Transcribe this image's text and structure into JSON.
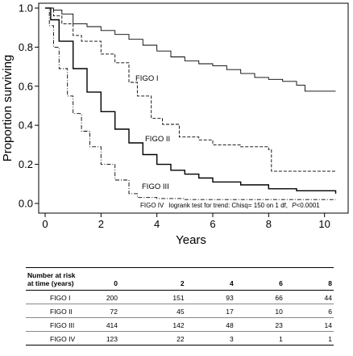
{
  "chart_data": {
    "type": "line",
    "ylabel": "Proportion surviving",
    "xlabel": "Years",
    "xlim": [
      0,
      10.5
    ],
    "ylim": [
      0,
      1.0
    ],
    "xticks": [
      "0",
      "2",
      "4",
      "6",
      "8",
      "10"
    ],
    "yticks": [
      "0.0",
      "0.2",
      "0.4",
      "0.6",
      "0.8",
      "1.0"
    ],
    "annotation": {
      "label": "FIGO IV",
      "text": "logrank test for trend: Chisq= 150 on 1 df,",
      "p_label": "P",
      "p_value": "<0.0001"
    },
    "series": [
      {
        "name": "FIGO I",
        "style": "solid",
        "points": [
          [
            0,
            1.0
          ],
          [
            0.3,
            0.99
          ],
          [
            0.6,
            0.97
          ],
          [
            1.0,
            0.92
          ],
          [
            1.5,
            0.905
          ],
          [
            2.0,
            0.885
          ],
          [
            2.5,
            0.865
          ],
          [
            3.0,
            0.84
          ],
          [
            3.5,
            0.81
          ],
          [
            4.0,
            0.78
          ],
          [
            4.5,
            0.75
          ],
          [
            5.0,
            0.73
          ],
          [
            5.5,
            0.715
          ],
          [
            6.0,
            0.705
          ],
          [
            6.5,
            0.685
          ],
          [
            7.0,
            0.665
          ],
          [
            7.5,
            0.645
          ],
          [
            8.0,
            0.635
          ],
          [
            8.5,
            0.625
          ],
          [
            9.0,
            0.605
          ],
          [
            9.3,
            0.575
          ],
          [
            10.4,
            0.575
          ]
        ]
      },
      {
        "name": "FIGO II",
        "style": "dashed",
        "points": [
          [
            0,
            1.0
          ],
          [
            0.3,
            0.96
          ],
          [
            0.6,
            0.92
          ],
          [
            1.0,
            0.86
          ],
          [
            1.3,
            0.83
          ],
          [
            2.0,
            0.765
          ],
          [
            2.5,
            0.72
          ],
          [
            3.0,
            0.62
          ],
          [
            3.3,
            0.55
          ],
          [
            3.8,
            0.435
          ],
          [
            4.2,
            0.405
          ],
          [
            4.8,
            0.34
          ],
          [
            5.5,
            0.325
          ],
          [
            6.0,
            0.3
          ],
          [
            7.0,
            0.29
          ],
          [
            8.0,
            0.275
          ],
          [
            8.1,
            0.165
          ],
          [
            10.4,
            0.165
          ]
        ]
      },
      {
        "name": "FIGO III",
        "style": "solid",
        "points": [
          [
            0,
            1.0
          ],
          [
            0.2,
            0.94
          ],
          [
            0.5,
            0.83
          ],
          [
            1.0,
            0.69
          ],
          [
            1.5,
            0.57
          ],
          [
            2.0,
            0.47
          ],
          [
            2.5,
            0.38
          ],
          [
            3.0,
            0.31
          ],
          [
            3.5,
            0.25
          ],
          [
            4.0,
            0.2
          ],
          [
            4.5,
            0.17
          ],
          [
            5.0,
            0.15
          ],
          [
            5.5,
            0.13
          ],
          [
            6.0,
            0.11
          ],
          [
            7.0,
            0.095
          ],
          [
            8.0,
            0.075
          ],
          [
            9.0,
            0.065
          ],
          [
            10.4,
            0.05
          ]
        ]
      },
      {
        "name": "FIGO IV",
        "style": "dash-dot",
        "points": [
          [
            0,
            1.0
          ],
          [
            0.15,
            0.91
          ],
          [
            0.3,
            0.8
          ],
          [
            0.5,
            0.69
          ],
          [
            0.8,
            0.55
          ],
          [
            1.0,
            0.46
          ],
          [
            1.3,
            0.37
          ],
          [
            1.6,
            0.29
          ],
          [
            2.0,
            0.2
          ],
          [
            2.5,
            0.12
          ],
          [
            3.0,
            0.05
          ],
          [
            3.3,
            0.03
          ],
          [
            4.0,
            0.025
          ],
          [
            5.0,
            0.02
          ],
          [
            10.4,
            0.02
          ]
        ]
      }
    ]
  },
  "risk_table": {
    "header_line1": "Number at risk",
    "header_line2": "at time (years)",
    "times": [
      "0",
      "2",
      "4",
      "6",
      "8"
    ],
    "rows": [
      {
        "group": "FIGO I",
        "values": [
          "200",
          "151",
          "93",
          "66",
          "44"
        ]
      },
      {
        "group": "FIGO II",
        "values": [
          "72",
          "45",
          "17",
          "10",
          "6"
        ]
      },
      {
        "group": "FIGO III",
        "values": [
          "414",
          "142",
          "48",
          "23",
          "14"
        ]
      },
      {
        "group": "FIGO IV",
        "values": [
          "123",
          "22",
          "3",
          "1",
          "1"
        ]
      }
    ]
  }
}
